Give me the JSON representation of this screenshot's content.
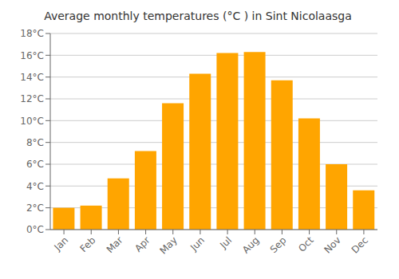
{
  "chart_data": {
    "type": "bar",
    "title": "Average monthly temperatures (°C ) in Sint Nicolaasga",
    "categories": [
      "Jan",
      "Feb",
      "Mar",
      "Apr",
      "May",
      "Jun",
      "Jul",
      "Aug",
      "Sep",
      "Oct",
      "Nov",
      "Dec"
    ],
    "values": [
      2.0,
      2.2,
      4.7,
      7.2,
      11.6,
      14.3,
      16.2,
      16.3,
      13.7,
      10.2,
      6.0,
      3.6
    ],
    "color": "#FFA500",
    "ylim": [
      0,
      18
    ],
    "yticks": [
      {
        "value": 0,
        "label": "0°C"
      },
      {
        "value": 2,
        "label": "2°C"
      },
      {
        "value": 4,
        "label": "4°C"
      },
      {
        "value": 6,
        "label": "6°C"
      },
      {
        "value": 8,
        "label": "8°C"
      },
      {
        "value": 10,
        "label": "10°C"
      },
      {
        "value": 12,
        "label": "12°C"
      },
      {
        "value": 14,
        "label": "14°C"
      },
      {
        "value": 16,
        "label": "16°C"
      },
      {
        "value": 18,
        "label": "18°C"
      }
    ],
    "grid": true
  }
}
